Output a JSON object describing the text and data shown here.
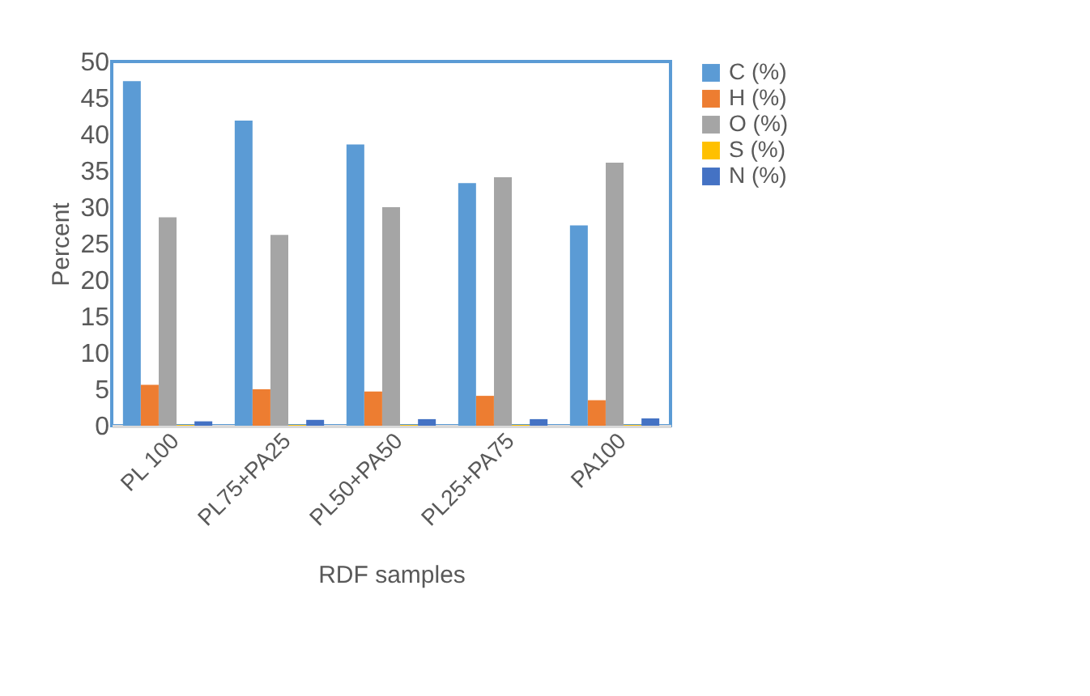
{
  "chart_data": {
    "type": "bar",
    "xlabel": "RDF samples",
    "ylabel": "Percent",
    "categories": [
      "PL 100",
      "PL75+PA25",
      "PL50+PA50",
      "PL25+PA75",
      "PA100"
    ],
    "series": [
      {
        "name": "C (%)",
        "color": "#5b9bd5",
        "values": [
          47.3,
          41.9,
          38.6,
          33.3,
          27.5
        ]
      },
      {
        "name": "H (%)",
        "color": "#ed7d31",
        "values": [
          5.6,
          5.0,
          4.7,
          4.1,
          3.5
        ]
      },
      {
        "name": "O (%)",
        "color": "#a5a5a5",
        "values": [
          28.6,
          26.2,
          30.0,
          34.1,
          36.1
        ]
      },
      {
        "name": "S (%)",
        "color": "#ffc000",
        "values": [
          0.1,
          0.1,
          0.1,
          0.1,
          0.1
        ]
      },
      {
        "name": "N (%)",
        "color": "#4472c4",
        "values": [
          0.6,
          0.8,
          0.9,
          0.9,
          1.0
        ]
      }
    ],
    "ylim": [
      0,
      50
    ],
    "yticks": [
      0,
      5,
      10,
      15,
      20,
      25,
      30,
      35,
      40,
      45,
      50
    ],
    "grid": false,
    "legend": "right"
  }
}
